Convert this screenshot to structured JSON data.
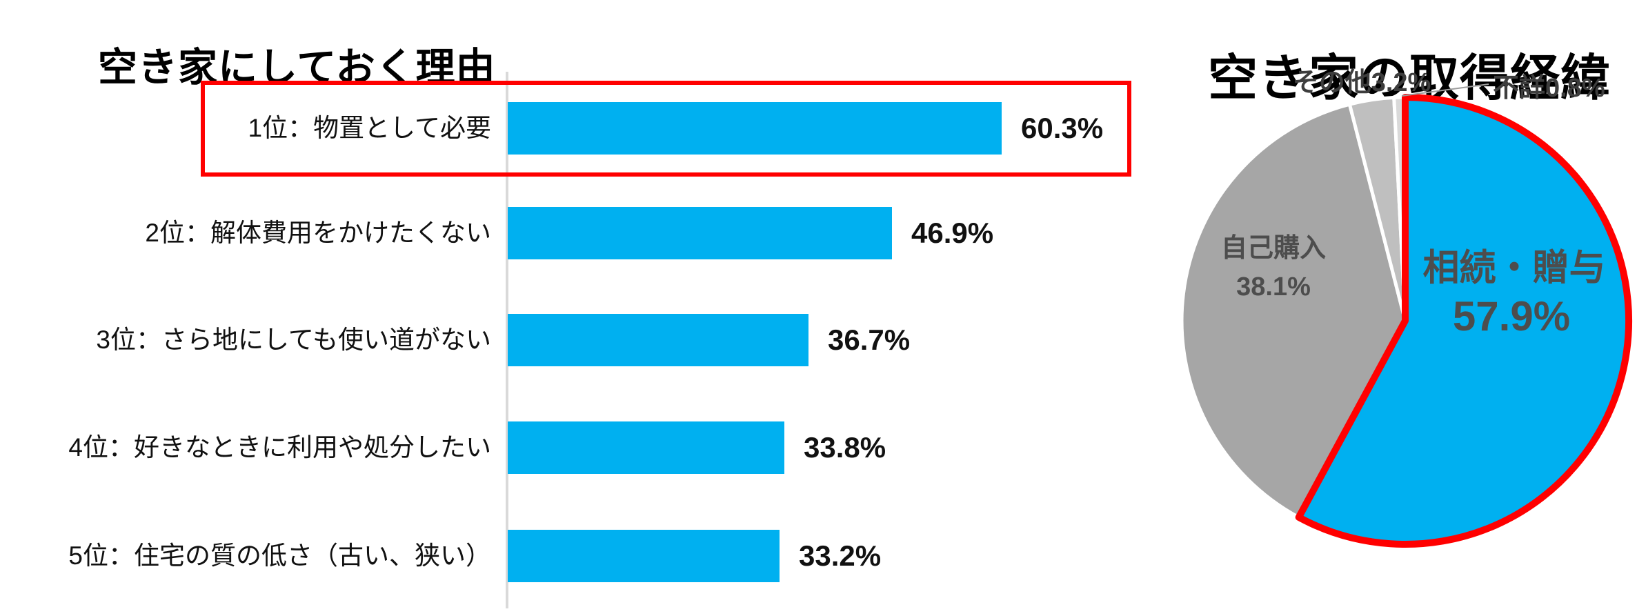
{
  "chart_data": [
    {
      "type": "bar",
      "orientation": "horizontal",
      "title": "空き家にしておく理由",
      "unit": "%",
      "grid": false,
      "value_labels_shown": true,
      "bar_color": "#00b0f0",
      "axis_color": "#d9d9d9",
      "categories": [
        "1位：物置として必要",
        "2位：解体費用をかけたくない",
        "3位：さら地にしても使い道がない",
        "4位：好きなときに利用や処分したい",
        "5位：住宅の質の低さ（古い、狭い）"
      ],
      "values": [
        60.3,
        46.9,
        36.7,
        33.8,
        33.2
      ],
      "value_labels": [
        "60.3%",
        "46.9%",
        "36.7%",
        "33.8%",
        "33.2%"
      ],
      "highlight": {
        "index": 0,
        "box_color": "#ff0000"
      }
    },
    {
      "type": "pie",
      "title": "空き家の取得経緯",
      "start_angle_deg": 0,
      "direction": "clockwise",
      "legend": "none",
      "highlight_color": "#ff0000",
      "leader_line_color": "#9d9d9d",
      "slices": [
        {
          "label": "相続・贈与",
          "value": 57.9,
          "value_label": "57.9%",
          "color": "#00b0f0",
          "highlighted": true
        },
        {
          "label": "自己購入",
          "value": 38.1,
          "value_label": "38.1%",
          "color": "#a6a6a6",
          "highlighted": false
        },
        {
          "label": "その他",
          "value": 3.2,
          "value_label": "3.2%",
          "color": "#bfbfbf",
          "highlighted": false,
          "callout": "その他3.2%"
        },
        {
          "label": "不詳",
          "value": 0.8,
          "value_label": "0.8%",
          "color": "#d9d9d9",
          "highlighted": false,
          "callout": "不詳0.8%"
        }
      ]
    }
  ]
}
